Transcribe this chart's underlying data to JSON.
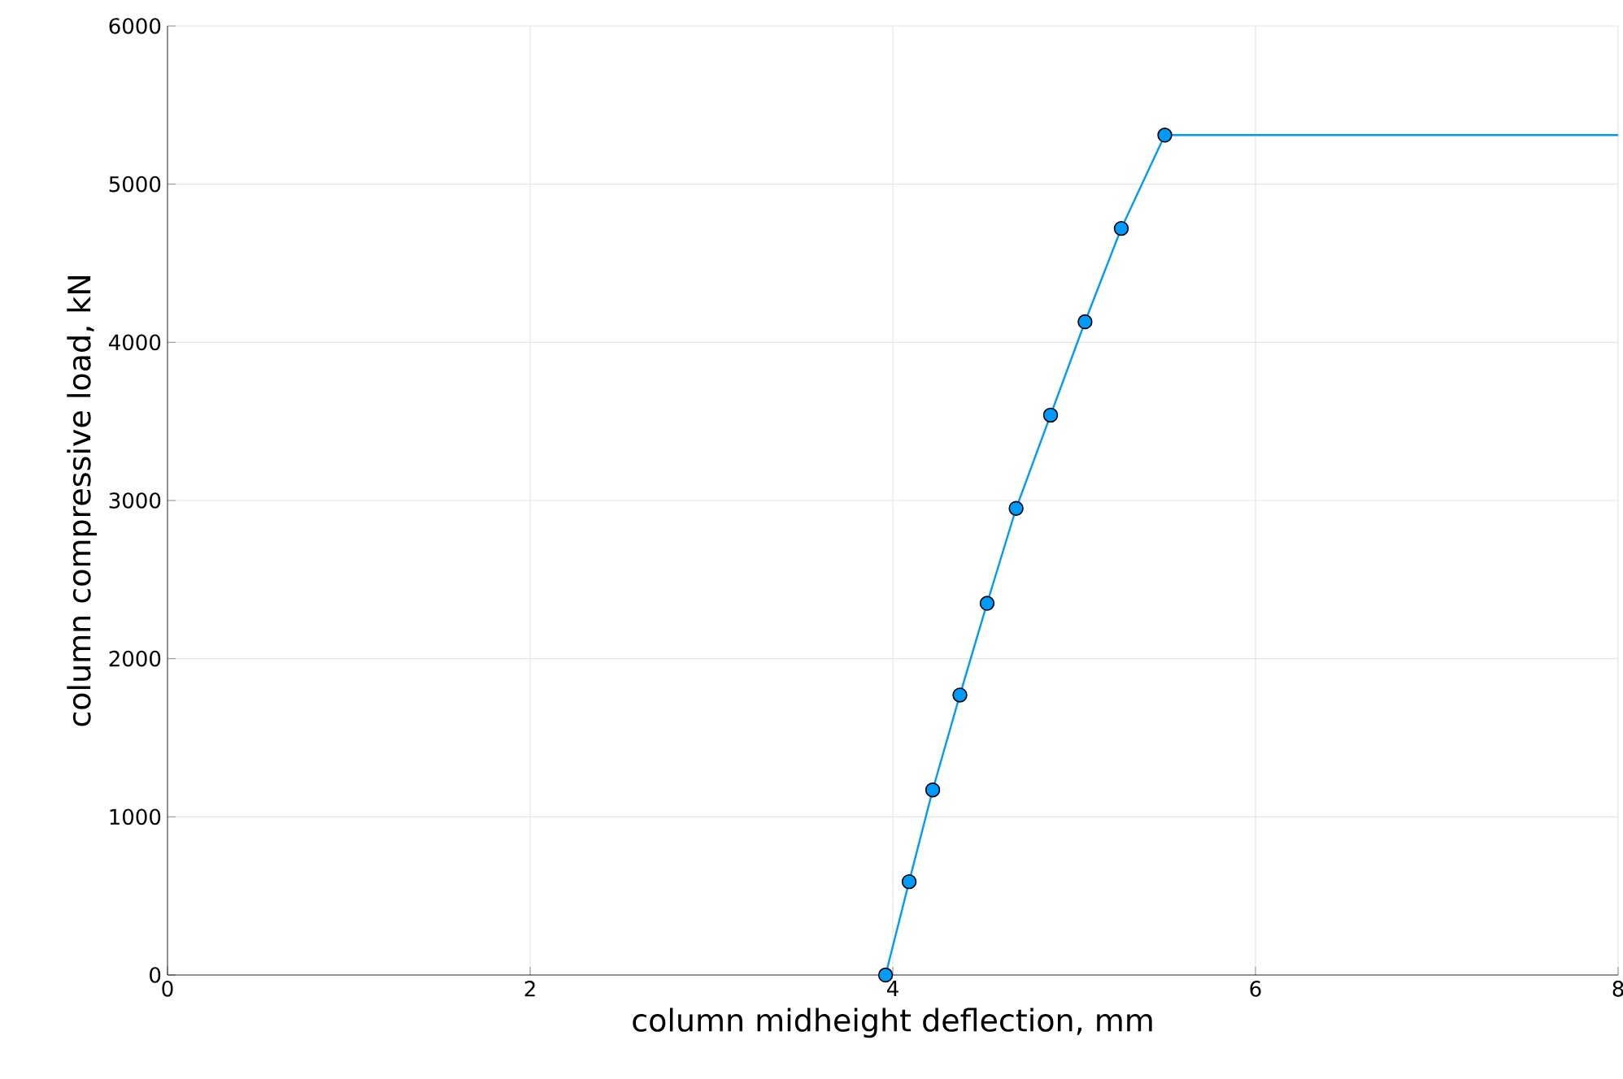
{
  "chart_data": {
    "type": "line",
    "xlabel": "column midheight deflection, mm",
    "ylabel": "column compressive load, kN",
    "xlim": [
      0,
      8
    ],
    "ylim": [
      0,
      6000
    ],
    "xticks": [
      0,
      2,
      4,
      6,
      8
    ],
    "yticks": [
      0,
      1000,
      2000,
      3000,
      4000,
      5000,
      6000
    ],
    "grid": true,
    "series": [
      {
        "color": "#009af9",
        "marker": "none",
        "x": [
          3.96,
          4.09,
          4.22,
          4.37,
          4.52,
          4.68,
          4.87,
          5.06,
          5.26,
          5.5,
          8
        ],
        "values": [
          0,
          590,
          1170,
          1770,
          2350,
          2950,
          3540,
          4130,
          4720,
          5310,
          5310
        ]
      },
      {
        "type": "scatter",
        "color": "#009af9",
        "marker": "circle",
        "x": [
          3.96,
          4.09,
          4.22,
          4.37,
          4.52,
          4.68,
          4.87,
          5.06,
          5.26,
          5.5
        ],
        "values": [
          0,
          590,
          1170,
          1770,
          2350,
          2950,
          3540,
          4130,
          4720,
          5310
        ]
      }
    ]
  }
}
